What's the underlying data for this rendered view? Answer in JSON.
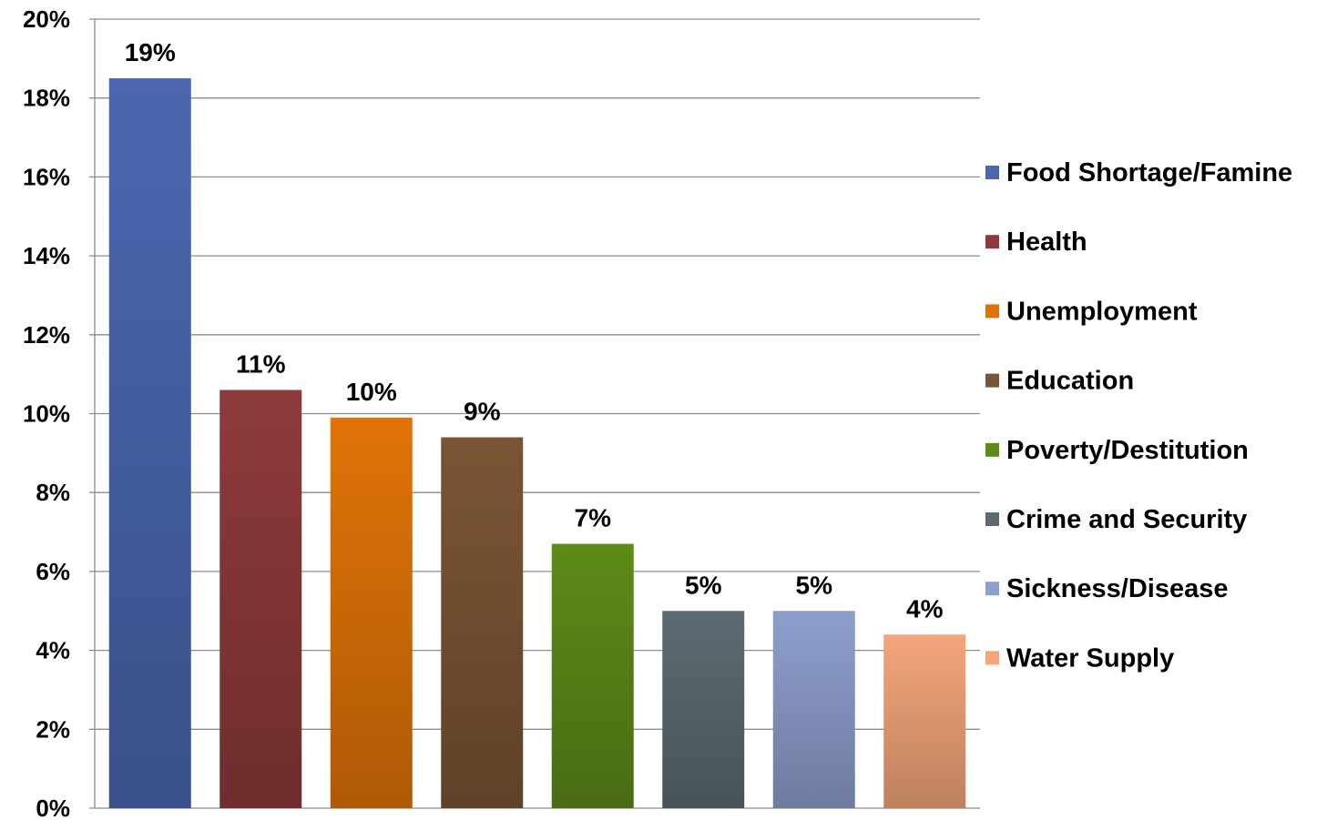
{
  "chart_data": {
    "type": "bar",
    "categories": [
      "Food Shortage/Famine",
      "Health",
      "Unemployment",
      "Education",
      "Poverty/Destitution",
      "Crime and Security",
      "Sickness/Disease",
      "Water Supply"
    ],
    "values": [
      18.5,
      10.6,
      9.9,
      9.4,
      6.7,
      5.0,
      5.0,
      4.4
    ],
    "data_labels": [
      "19%",
      "11%",
      "10%",
      "9%",
      "7%",
      "5%",
      "5%",
      "4%"
    ],
    "colors": [
      "#4a67b0",
      "#8e3a3a",
      "#e07308",
      "#7a5534",
      "#5d8b18",
      "#5c6b72",
      "#8e9ecd",
      "#f4a57a"
    ],
    "ylim": [
      0,
      20
    ],
    "yticks": [
      "0%",
      "2%",
      "4%",
      "6%",
      "8%",
      "10%",
      "12%",
      "14%",
      "16%",
      "18%",
      "20%"
    ],
    "grid": true,
    "legend_position": "right",
    "title": "",
    "xlabel": "",
    "ylabel": ""
  }
}
